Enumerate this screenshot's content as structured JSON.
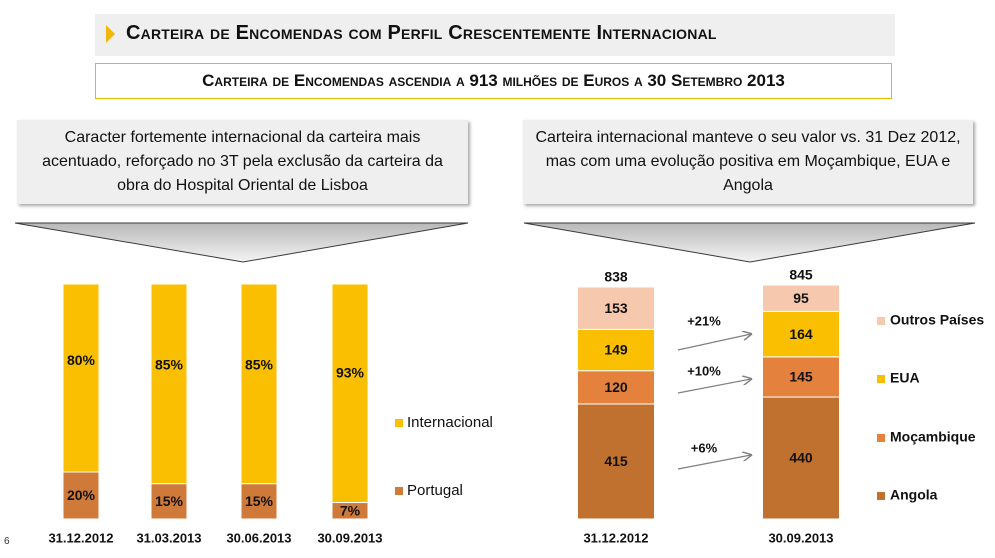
{
  "header": {
    "title": "Carteira de Encomendas com Perfil Crescentemente Internacional",
    "subtitle": "Carteira de Encomendas ascendia a 913 milhões de Euros a 30 Setembro 2013"
  },
  "left_panel": {
    "callout": "Caracter fortemente internacional da carteira mais acentuado, reforçado no 3T pela exclusão da carteira da obra do Hospital Oriental de Lisboa"
  },
  "right_panel": {
    "callout": "Carteira internacional manteve o seu valor vs. 31 Dez 2012, mas com uma evolução positiva em Moçambique, EUA e Angola"
  },
  "page_number": "6",
  "colors": {
    "internacional": "#f9bf00",
    "portugal": "#d07a3a",
    "outros": "#f6c8ad",
    "eua": "#f9bf00",
    "mocambique": "#e4823d",
    "angola": "#c0712f",
    "accent": "#f2b705"
  },
  "chart_data": [
    {
      "type": "bar",
      "stacked": true,
      "normalized": true,
      "categories": [
        "31.12.2012",
        "31.03.2013",
        "30.06.2013",
        "30.09.2013"
      ],
      "series": [
        {
          "name": "Portugal",
          "values": [
            20,
            15,
            15,
            7
          ],
          "labels": [
            "20%",
            "15%",
            "15%",
            "7%"
          ]
        },
        {
          "name": "Internacional",
          "values": [
            80,
            85,
            85,
            93
          ],
          "labels": [
            "80%",
            "85%",
            "85%",
            "93%"
          ]
        }
      ],
      "legend": [
        "Internacional",
        "Portugal"
      ],
      "title": "",
      "xlabel": "",
      "ylabel": "",
      "ylim": [
        0,
        100
      ]
    },
    {
      "type": "bar",
      "stacked": true,
      "categories": [
        "31.12.2012",
        "30.09.2013"
      ],
      "totals": [
        838,
        845
      ],
      "series": [
        {
          "name": "Angola",
          "values": [
            415,
            440
          ]
        },
        {
          "name": "Moçambique",
          "values": [
            120,
            145
          ]
        },
        {
          "name": "EUA",
          "values": [
            149,
            164
          ]
        },
        {
          "name": "Outros Países",
          "values": [
            153,
            95
          ]
        }
      ],
      "growth_annotations": [
        "+21%",
        "+10%",
        "+6%"
      ],
      "legend": [
        "Outros Países",
        "EUA",
        "Moçambique",
        "Angola"
      ],
      "title": "",
      "xlabel": "",
      "ylabel": ""
    }
  ]
}
